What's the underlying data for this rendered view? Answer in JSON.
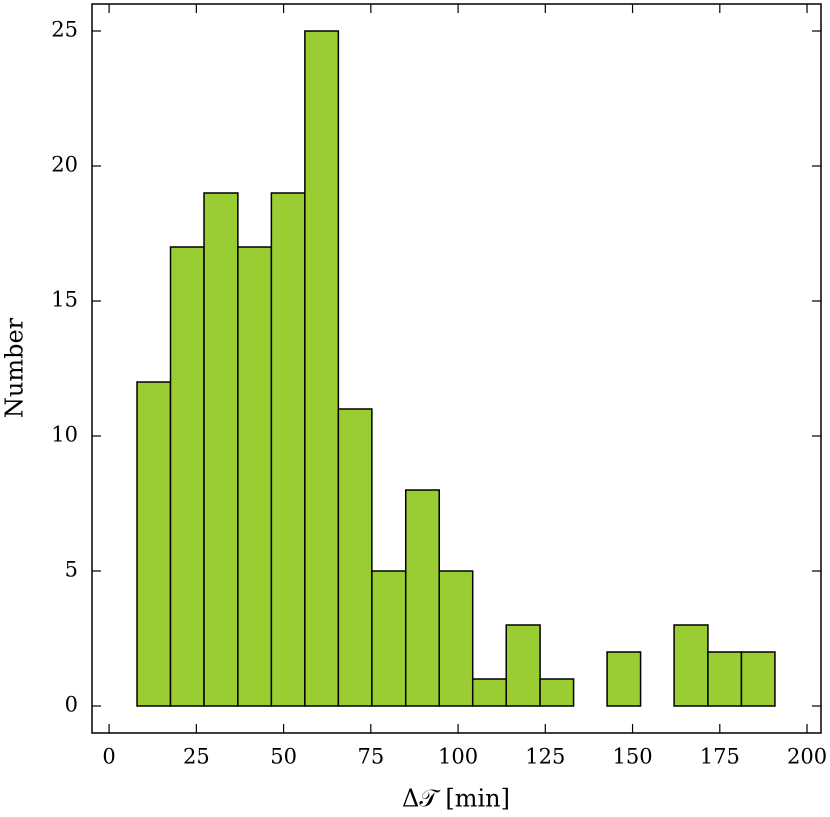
{
  "chart_data": {
    "type": "histogram",
    "x_label": "Δ𝒯 [min]",
    "y_label": "Number",
    "bins": [
      8.0,
      17.6,
      27.2,
      36.9,
      46.5,
      56.1,
      65.7,
      75.3,
      85.0,
      94.6,
      104.2,
      113.8,
      123.5,
      133.1,
      142.7,
      152.3,
      161.9,
      171.6,
      181.2,
      190.8
    ],
    "values": [
      12,
      17,
      19,
      17,
      19,
      25,
      11,
      5,
      8,
      5,
      1,
      3,
      1,
      0,
      2,
      0,
      3,
      2,
      2
    ],
    "color": "#9acd32",
    "xlim": [
      -4.9,
      204
    ],
    "ylim": [
      -1,
      26
    ],
    "xticks": [
      0,
      25,
      50,
      75,
      100,
      125,
      150,
      175,
      200
    ],
    "yticks": [
      0,
      5,
      10,
      15,
      20,
      25
    ]
  }
}
